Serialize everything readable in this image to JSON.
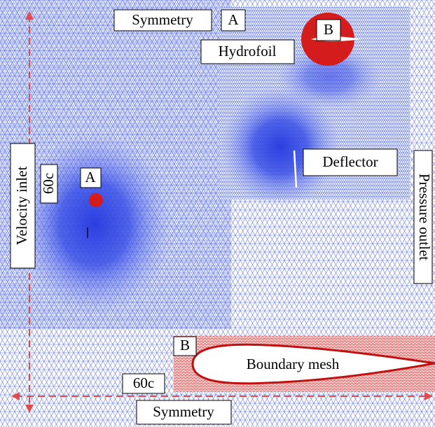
{
  "labels": {
    "top_symmetry": "Symmetry",
    "top_a": "A",
    "zoom_b": "B",
    "hydrofoil": "Hydrofoil",
    "deflector": "Deflector",
    "velocity_inlet": "Velocity inlet",
    "left_60c": "60c",
    "left_a": "A",
    "pressure_outlet": "Pressure outlet",
    "bottom_b": "B",
    "boundary_mesh": "Boundary mesh",
    "bottom_60c": "60c",
    "bottom_symmetry": "Symmetry"
  }
}
